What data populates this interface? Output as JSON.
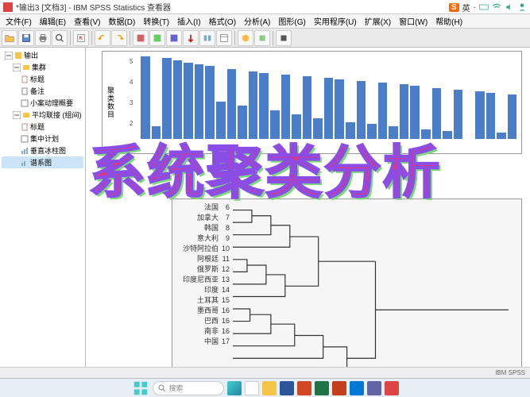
{
  "window": {
    "title": "*输出3 [文档3] - IBM SPSS Statistics 查看器"
  },
  "menu": [
    "文件(F)",
    "编辑(E)",
    "查看(V)",
    "数据(D)",
    "转换(T)",
    "插入(I)",
    "格式(O)",
    "分析(A)",
    "图形(G)",
    "实用程序(U)",
    "扩展(X)",
    "窗口(W)",
    "帮助(H)"
  ],
  "tree": {
    "root": "输出",
    "group1": "集群",
    "items1": [
      "标题",
      "备注",
      "小案动理概要"
    ],
    "group2": "平均联接 (组间)",
    "items2": [
      "标题",
      "集中计划",
      "垂直冰柱图",
      "谱系图"
    ]
  },
  "overlay": "系统聚类分析",
  "barchart": {
    "ylabel": "聚类数目",
    "yticks": [
      "5",
      "4",
      "3",
      "2"
    ],
    "bar_color": "#4a7ec9",
    "heights": [
      100,
      15,
      98,
      95,
      92,
      90,
      88,
      45,
      85,
      40,
      82,
      80,
      35,
      78,
      30,
      76,
      25,
      74,
      72,
      20,
      70,
      18,
      68,
      15,
      66,
      64,
      12,
      62,
      10,
      60,
      0,
      58,
      56,
      8,
      54
    ]
  },
  "dendrogram": {
    "labels": [
      "法国",
      "加拿大",
      "韩国",
      "意大利",
      "沙特阿拉伯",
      "阿根廷",
      "俄罗斯",
      "印度尼西亚",
      "印度",
      "土耳其",
      "墨西哥",
      "巴西",
      "南非",
      "中国"
    ],
    "nums": [
      "6",
      "7",
      "8",
      "9",
      "10",
      "11",
      "12",
      "13",
      "14",
      "15",
      "16",
      "16",
      "16",
      "17"
    ]
  },
  "taskbar": {
    "search_placeholder": "搜索"
  },
  "status": "IBM SPSS",
  "tray": {
    "ime": "英",
    "icons": [
      "S"
    ]
  }
}
